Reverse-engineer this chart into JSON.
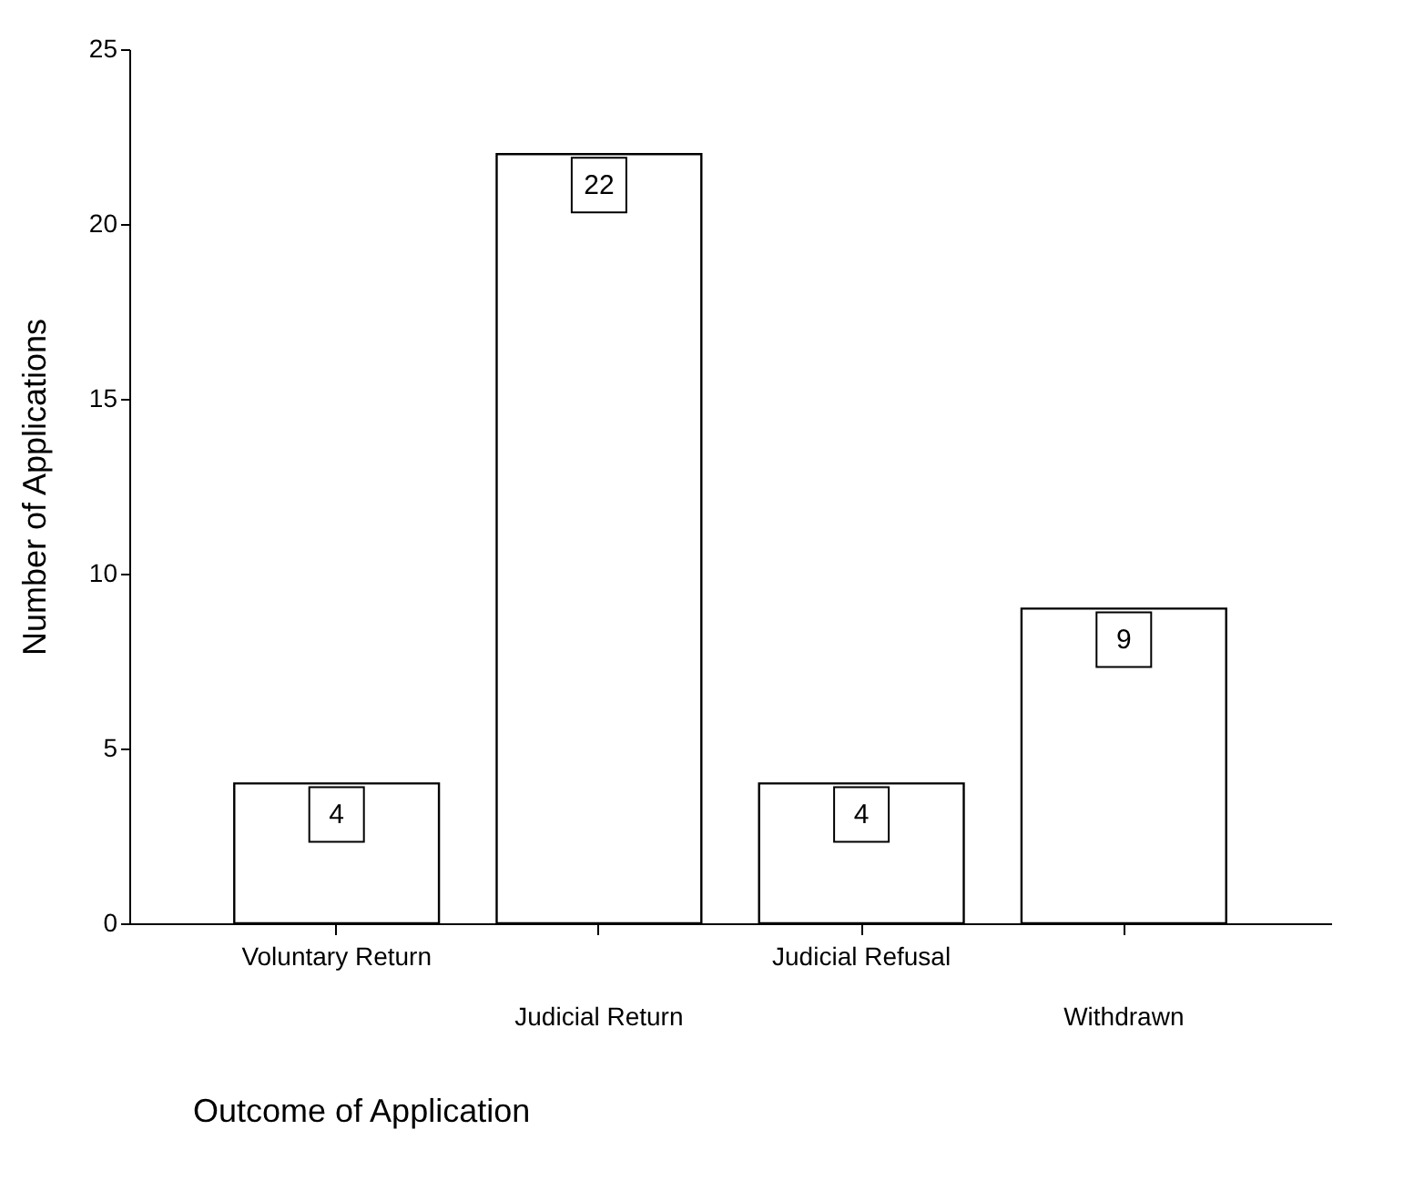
{
  "chart_data": {
    "type": "bar",
    "xlabel": "Outcome of Application",
    "ylabel": "Number of Applications",
    "categories": [
      "Voluntary Return",
      "Judicial Return",
      "Judicial Refusal",
      "Withdrawn"
    ],
    "values": [
      4,
      22,
      4,
      9
    ],
    "color": "#ffffff",
    "ylim": [
      0,
      25
    ],
    "yticks": [
      0,
      5,
      10,
      15,
      20,
      25
    ],
    "grid": false,
    "data_labels": true
  }
}
